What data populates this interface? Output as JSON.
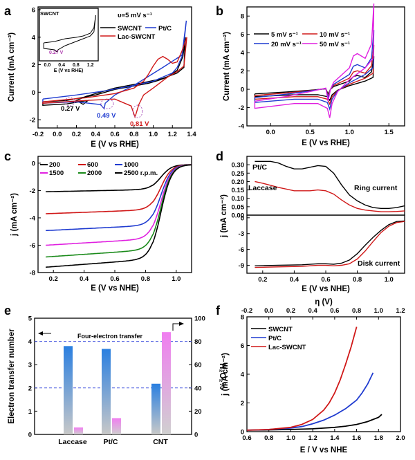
{
  "chart_data": [
    {
      "panel": "a",
      "type": "line",
      "title": "",
      "subtitle": "υ=5 mV s⁻¹",
      "xlabel": "E  (V vs RHE)",
      "ylabel": "Current (mA cm⁻²)",
      "xlim": [
        -0.2,
        1.4
      ],
      "ylim": [
        -2.6,
        6.2
      ],
      "xticks": [
        "-0.2",
        "0.0",
        "0.2",
        "0.4",
        "0.6",
        "0.8",
        "1.0",
        "1.2",
        "1.4"
      ],
      "yticks": [
        "-2",
        "0",
        "2",
        "4",
        "6"
      ],
      "legend": [
        "SWCNT",
        "Pt/C",
        "Lac-SWCNT"
      ],
      "series": [
        {
          "name": "SWCNT",
          "color": "#000000",
          "x": [
            -0.15,
            0.1,
            0.4,
            0.6,
            0.8,
            0.95,
            1.05,
            1.15,
            1.25,
            1.31,
            1.335,
            1.32,
            1.25,
            1.1,
            0.9,
            0.6,
            0.3,
            0.2,
            0.27,
            0.32,
            0.1,
            -0.15,
            -0.15
          ],
          "y": [
            -0.7,
            -0.6,
            -0.2,
            0.2,
            0.45,
            0.65,
            0.85,
            1.1,
            1.6,
            2.6,
            4.0,
            1.8,
            1.4,
            1.0,
            0.7,
            0.3,
            -0.3,
            -0.6,
            -0.88,
            -0.6,
            -0.85,
            -0.95,
            -0.7
          ]
        },
        {
          "name": "Pt/C",
          "color": "#1f3bd0",
          "x": [
            -0.15,
            0.2,
            0.5,
            0.8,
            1.0,
            1.1,
            1.2,
            1.25,
            1.3,
            1.33,
            1.345,
            1.3,
            1.1,
            0.8,
            0.6,
            0.5,
            0.49,
            0.45,
            0.2,
            -0.15,
            -0.15
          ],
          "y": [
            -0.5,
            -0.2,
            0.1,
            0.5,
            0.8,
            1.1,
            1.4,
            1.8,
            2.6,
            4.2,
            5.2,
            2.7,
            1.8,
            0.5,
            -0.2,
            -0.8,
            -1.2,
            -0.9,
            -0.7,
            -0.8,
            -0.5
          ]
        },
        {
          "name": "Lac-SWCNT",
          "color": "#d01818",
          "x": [
            -0.15,
            0.3,
            0.6,
            0.8,
            0.9,
            0.95,
            1.0,
            1.05,
            1.1,
            1.15,
            1.2,
            1.25,
            1.3,
            1.35,
            1.32,
            1.25,
            1.15,
            1.0,
            0.9,
            0.85,
            0.82,
            0.81,
            0.77,
            0.6,
            0.3,
            -0.15,
            -0.15
          ],
          "y": [
            -0.7,
            -0.4,
            -0.1,
            0.3,
            0.8,
            1.3,
            1.9,
            2.4,
            2.6,
            2.4,
            2.1,
            2.2,
            3.0,
            4.0,
            1.9,
            1.5,
            1.1,
            0.3,
            -0.2,
            -0.9,
            -1.6,
            -1.8,
            -1.0,
            -0.5,
            -0.6,
            -0.8,
            -0.7
          ]
        }
      ],
      "annotations": [
        "0.27 V",
        "0.49 V",
        "0.81 V"
      ],
      "inset": {
        "label": "SWCNT",
        "xlabel": "E  (V vs RHE)",
        "xticks": [
          "0.0",
          "0.4",
          "0.8",
          "1.2"
        ],
        "annotation": "0.27 V",
        "x": [
          -0.1,
          0.2,
          0.5,
          0.8,
          1.0,
          1.2,
          1.3,
          1.35,
          1.3,
          1.2,
          1.0,
          0.8,
          0.5,
          0.3,
          0.27,
          0.2,
          -0.1,
          -0.1
        ],
        "y": [
          0.2,
          0.3,
          0.5,
          0.6,
          0.7,
          0.9,
          1.3,
          2.2,
          1.0,
          0.7,
          0.5,
          0.3,
          0.0,
          -0.3,
          -0.45,
          -0.3,
          -0.2,
          0.2
        ]
      }
    },
    {
      "panel": "b",
      "type": "line",
      "xlabel": "E  (V vs RHE)",
      "ylabel": "Current (mA cm⁻²)",
      "xlim": [
        -0.3,
        1.7
      ],
      "ylim": [
        -4,
        9
      ],
      "xticks": [
        "0.0",
        "0.5",
        "1.0",
        "1.5"
      ],
      "yticks": [
        "-4",
        "-2",
        "0",
        "2",
        "4",
        "6",
        "8"
      ],
      "legend": [
        "5   mV s⁻¹",
        "10 mV s⁻¹",
        "20 mV s⁻¹",
        "50 mV s⁻¹"
      ],
      "series": [
        {
          "name": "5 mV s⁻¹",
          "color": "#000000",
          "scale": 1.0
        },
        {
          "name": "10 mV s⁻¹",
          "color": "#d01818",
          "scale": 1.35
        },
        {
          "name": "20 mV s⁻¹",
          "color": "#1f3bd0",
          "scale": 1.8
        },
        {
          "name": "50 mV s⁻¹",
          "color": "#e020e0",
          "scale": 2.6
        }
      ],
      "base_x": [
        -0.2,
        0.2,
        0.5,
        0.7,
        0.73,
        0.76,
        0.8,
        1.0,
        1.05,
        1.1,
        1.2,
        1.28,
        1.31,
        1.3,
        1.2,
        1.0,
        0.85,
        0.78,
        0.75,
        0.72,
        0.6,
        0.3,
        -0.2,
        -0.2
      ],
      "base_y": [
        -0.5,
        -0.3,
        -0.1,
        0.05,
        -0.5,
        0.0,
        0.3,
        0.9,
        1.4,
        1.5,
        1.3,
        1.9,
        3.6,
        1.3,
        0.9,
        0.4,
        -0.1,
        -0.6,
        -1.2,
        -0.8,
        -0.6,
        -0.6,
        -0.8,
        -0.5
      ]
    },
    {
      "panel": "c",
      "type": "line",
      "xlabel": "E  (V vs NHE)",
      "ylabel": "j (mA cm⁻²)",
      "xlim": [
        0.1,
        1.1
      ],
      "ylim": [
        -8,
        0.5
      ],
      "xticks": [
        "0.2",
        "0.4",
        "0.6",
        "0.8",
        "1.0"
      ],
      "yticks": [
        "0",
        "-2",
        "-4",
        "-6",
        "-8"
      ],
      "legend": [
        "200",
        "600",
        "1000",
        "1500",
        "2000",
        "2500 r.p.m."
      ],
      "series": [
        {
          "name": "200",
          "color": "#000000",
          "limit": -1.95
        },
        {
          "name": "600",
          "color": "#d01818",
          "limit": -3.45
        },
        {
          "name": "1000",
          "color": "#1f3bd0",
          "limit": -4.6
        },
        {
          "name": "1500",
          "color": "#e020e0",
          "limit": -5.6
        },
        {
          "name": "2000",
          "color": "#1a8a1a",
          "limit": -6.4
        },
        {
          "name": "2500 r.p.m.",
          "color": "#000000",
          "limit": -7.1
        }
      ]
    },
    {
      "panel": "d",
      "type": "line",
      "xlabel": "E  (V vs NHE)",
      "ylabel": "j (mA cm⁻²)",
      "xlim": [
        0.1,
        1.1
      ],
      "xticks": [
        "0.2",
        "0.4",
        "0.6",
        "0.8",
        "1.0"
      ],
      "top_ylim": [
        0,
        0.35
      ],
      "top_yticks": [
        "0.30",
        "0.25",
        "0.20",
        "0.15",
        "0.10",
        "0.05",
        "0.00"
      ],
      "bottom_ylim": [
        -10.5,
        0.5
      ],
      "bottom_yticks": [
        "0",
        "-3",
        "-6",
        "-9"
      ],
      "labels": [
        "Pt/C",
        "Laccase",
        "Ring current",
        "Disk current"
      ],
      "series": [
        {
          "name": "Pt/C ring",
          "color": "#000000",
          "x": [
            0.15,
            0.25,
            0.3,
            0.35,
            0.4,
            0.45,
            0.5,
            0.55,
            0.6,
            0.65,
            0.7,
            0.75,
            0.8,
            0.85,
            0.9,
            0.95,
            1.0,
            1.05,
            1.1
          ],
          "y": [
            0.32,
            0.32,
            0.31,
            0.29,
            0.275,
            0.275,
            0.285,
            0.295,
            0.29,
            0.25,
            0.18,
            0.12,
            0.085,
            0.06,
            0.045,
            0.04,
            0.04,
            0.045,
            0.055
          ]
        },
        {
          "name": "Laccase ring",
          "color": "#d01818",
          "x": [
            0.15,
            0.2,
            0.3,
            0.4,
            0.5,
            0.55,
            0.6,
            0.65,
            0.7,
            0.75,
            0.8,
            0.85,
            0.9,
            0.95,
            1.0,
            1.05,
            1.1
          ],
          "y": [
            0.2,
            0.19,
            0.165,
            0.145,
            0.145,
            0.15,
            0.145,
            0.125,
            0.09,
            0.06,
            0.04,
            0.03,
            0.025,
            0.02,
            0.02,
            0.022,
            0.025
          ]
        },
        {
          "name": "Pt/C disk",
          "color": "#000000",
          "x": [
            0.15,
            0.3,
            0.45,
            0.55,
            0.6,
            0.65,
            0.7,
            0.75,
            0.8,
            0.85,
            0.9,
            0.95,
            1.0,
            1.05,
            1.1
          ],
          "y": [
            -9.1,
            -9.0,
            -8.9,
            -8.7,
            -8.7,
            -8.8,
            -8.6,
            -8.0,
            -6.8,
            -5.2,
            -3.7,
            -2.4,
            -1.3,
            -0.7,
            -0.6
          ]
        },
        {
          "name": "Laccase disk",
          "color": "#d01818",
          "x": [
            0.15,
            0.3,
            0.45,
            0.55,
            0.6,
            0.65,
            0.7,
            0.75,
            0.8,
            0.85,
            0.9,
            0.95,
            1.0,
            1.05,
            1.1
          ],
          "y": [
            -9.4,
            -9.3,
            -9.2,
            -9.0,
            -9.0,
            -9.1,
            -9.0,
            -8.7,
            -7.8,
            -6.3,
            -4.5,
            -2.8,
            -1.6,
            -0.9,
            -0.7
          ]
        }
      ]
    },
    {
      "panel": "e",
      "type": "bar",
      "categories": [
        "Laccase",
        "Pt/C",
        "CNT"
      ],
      "series": [
        {
          "name": "Electron transfer number",
          "color": "#2a7fe0",
          "values": [
            3.8,
            3.68,
            2.18
          ],
          "axis": "left"
        },
        {
          "name": "H₂O₂%",
          "color": "#f07ef0",
          "values": [
            6,
            14,
            88
          ],
          "axis": "right"
        }
      ],
      "ylabel": "Electron transfer number",
      "ylabel2": "H₂O₂%",
      "ylim": [
        0,
        5
      ],
      "ylim2": [
        0,
        100
      ],
      "yticks": [
        "0",
        "1",
        "2",
        "3",
        "4",
        "5"
      ],
      "yticks2": [
        "0",
        "20",
        "40",
        "60",
        "80",
        "100"
      ],
      "reference_lines": [
        4,
        2
      ],
      "annotation": "Four-electron transfer"
    },
    {
      "panel": "f",
      "type": "line",
      "xlabel": "E / V vs NHE",
      "ylabel": "j (mA cm⁻²)",
      "top_xlabel": "η (V)",
      "xlim": [
        0.6,
        2.0
      ],
      "ylim": [
        0,
        8
      ],
      "xticks": [
        "0.6",
        "0.8",
        "1.0",
        "1.2",
        "1.4",
        "1.6",
        "1.8",
        "2.0"
      ],
      "top_xticks": [
        "-0.2",
        "0.0",
        "0.2",
        "0.4",
        "0.6",
        "0.8",
        "1.0",
        "1.2"
      ],
      "yticks": [
        "0",
        "2",
        "4",
        "6",
        "8"
      ],
      "legend": [
        "SWCNT",
        "Pt/C",
        "Lac-SWCNT"
      ],
      "series": [
        {
          "name": "SWCNT",
          "color": "#000000",
          "x": [
            0.6,
            0.8,
            1.0,
            1.2,
            1.4,
            1.5,
            1.6,
            1.7,
            1.75,
            1.8,
            1.83
          ],
          "y": [
            0.1,
            0.12,
            0.15,
            0.2,
            0.3,
            0.38,
            0.5,
            0.7,
            0.85,
            1.0,
            1.2
          ]
        },
        {
          "name": "Pt/C",
          "color": "#1f3bd0",
          "x": [
            0.6,
            0.8,
            1.0,
            1.1,
            1.2,
            1.3,
            1.4,
            1.5,
            1.6,
            1.65,
            1.7,
            1.75
          ],
          "y": [
            0.1,
            0.15,
            0.25,
            0.35,
            0.55,
            0.8,
            1.15,
            1.6,
            2.2,
            2.7,
            3.3,
            4.1
          ]
        },
        {
          "name": "Lac-SWCNT",
          "color": "#d01818",
          "x": [
            0.6,
            0.8,
            1.0,
            1.1,
            1.2,
            1.3,
            1.35,
            1.4,
            1.45,
            1.5,
            1.55,
            1.6
          ],
          "y": [
            0.1,
            0.15,
            0.3,
            0.5,
            0.85,
            1.5,
            2.0,
            2.7,
            3.6,
            4.7,
            5.9,
            7.3
          ]
        }
      ]
    }
  ]
}
